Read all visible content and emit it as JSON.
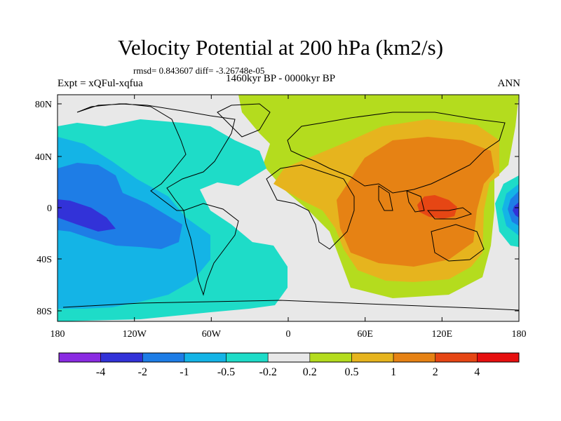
{
  "header": {
    "title": "Velocity Potential at 200 hPa (km2/s)",
    "stats": "rmsd= 0.843607 diff= -3.26748e-05",
    "experiment": "Expt = xQFul-xqfua",
    "period": "1460kyr BP - 0000kyr BP",
    "season": "ANN"
  },
  "axes": {
    "lat_ticks": [
      "80N",
      "40N",
      "0",
      "40S",
      "80S"
    ],
    "lon_ticks": [
      "180",
      "120W",
      "60W",
      "0",
      "60E",
      "120E",
      "180"
    ]
  },
  "colorbar": {
    "labels": [
      "-4",
      "-2",
      "-1",
      "-0.5",
      "-0.2",
      "0.2",
      "0.5",
      "1",
      "2",
      "4"
    ],
    "colors": [
      "#8a2be2",
      "#3232d8",
      "#1e7de6",
      "#14b4e6",
      "#1edcc8",
      "#e8e8e8",
      "#b4dc1e",
      "#e6b41e",
      "#e68214",
      "#e64614",
      "#e60f0f"
    ]
  }
}
